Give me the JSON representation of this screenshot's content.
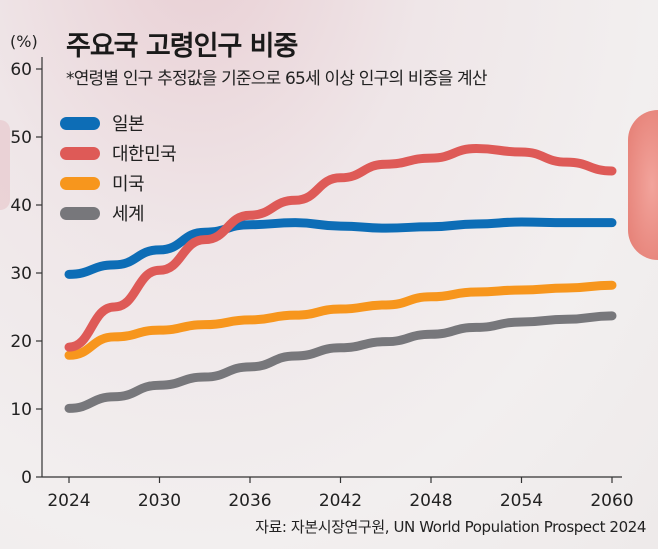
{
  "chart_data": {
    "type": "line",
    "title": "주요국 고령인구 비중",
    "subtitle": "*연령별 인구 추정값을 기준으로 65세 이상 인구의 비중을 계산",
    "ylabel": "(%)",
    "xlabel": "",
    "ylim": [
      0,
      60
    ],
    "yticks": [
      "0",
      "10",
      "20",
      "30",
      "40",
      "50",
      "60"
    ],
    "xlim": [
      2024,
      2060
    ],
    "xticks": [
      "2024",
      "2030",
      "2036",
      "2042",
      "2048",
      "2054",
      "2060"
    ],
    "grid": false,
    "legend_position": "top-left",
    "x": [
      2024,
      2027,
      2030,
      2033,
      2036,
      2039,
      2042,
      2045,
      2048,
      2051,
      2054,
      2057,
      2060
    ],
    "series": [
      {
        "name": "일본",
        "color": "#0d6db6",
        "values": [
          29.8,
          31.2,
          33.4,
          36.0,
          37.1,
          37.4,
          36.9,
          36.6,
          36.8,
          37.2,
          37.5,
          37.4,
          37.4
        ]
      },
      {
        "name": "대한민국",
        "color": "#de5a57",
        "values": [
          19.1,
          25.0,
          30.4,
          34.9,
          38.5,
          40.7,
          44.0,
          46.0,
          46.9,
          48.3,
          47.8,
          46.3,
          45.0
        ]
      },
      {
        "name": "미국",
        "color": "#f7961d",
        "values": [
          17.9,
          20.6,
          21.6,
          22.4,
          23.1,
          23.8,
          24.7,
          25.3,
          26.5,
          27.2,
          27.5,
          27.8,
          28.2
        ]
      },
      {
        "name": "세계",
        "color": "#77777b",
        "values": [
          10.1,
          11.8,
          13.5,
          14.7,
          16.2,
          17.8,
          19.0,
          19.9,
          21.0,
          22.0,
          22.8,
          23.2,
          23.7
        ]
      }
    ],
    "source": "자료: 자본시장연구원, UN World Population Prospect 2024"
  }
}
